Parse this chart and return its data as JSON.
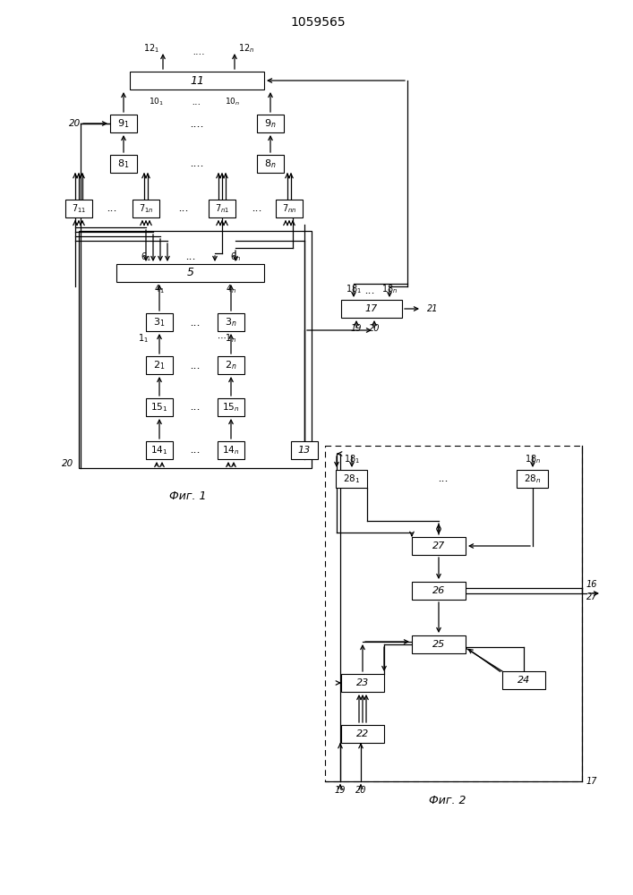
{
  "title": "1059565",
  "background_color": "#ffffff",
  "fig1_caption": "Фиг. 1",
  "fig2_caption": "Фиг. 2"
}
